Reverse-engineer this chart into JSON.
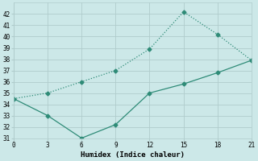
{
  "title": "",
  "xlabel": "Humidex (Indice chaleur)",
  "line1_x": [
    0,
    3,
    6,
    9,
    12,
    15,
    18,
    21
  ],
  "line1_y": [
    34.5,
    35.0,
    36.0,
    37.0,
    38.9,
    42.2,
    40.2,
    37.9
  ],
  "line2_x": [
    0,
    3,
    6,
    9,
    12,
    15,
    18,
    21
  ],
  "line2_y": [
    34.5,
    33.0,
    31.0,
    32.2,
    35.0,
    35.8,
    36.8,
    37.9
  ],
  "line_color": "#2e8b77",
  "bg_color": "#cce8e8",
  "grid_color": "#b0cccc",
  "xlim": [
    0,
    21
  ],
  "ylim": [
    31,
    43
  ],
  "xticks": [
    0,
    3,
    6,
    9,
    12,
    15,
    18,
    21
  ],
  "yticks": [
    31,
    32,
    33,
    34,
    35,
    36,
    37,
    38,
    39,
    40,
    41,
    42
  ],
  "marker": "D",
  "markersize": 2.5,
  "linewidth": 0.9
}
